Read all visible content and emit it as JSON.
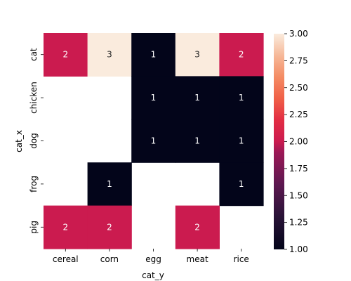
{
  "chart_data": {
    "type": "heatmap",
    "title": "",
    "xlabel": "cat_y",
    "ylabel": "cat_x",
    "x_categories": [
      "cereal",
      "corn",
      "egg",
      "meat",
      "rice"
    ],
    "y_categories": [
      "cat",
      "chicken",
      "dog",
      "frog",
      "pig"
    ],
    "values": [
      [
        2,
        3,
        1,
        3,
        2
      ],
      [
        null,
        null,
        1,
        1,
        1
      ],
      [
        null,
        null,
        1,
        1,
        1
      ],
      [
        null,
        1,
        null,
        null,
        1
      ],
      [
        2,
        2,
        null,
        2,
        null
      ]
    ],
    "colorbar": {
      "range": [
        1.0,
        3.0
      ],
      "ticks": [
        "1.00",
        "1.25",
        "1.50",
        "1.75",
        "2.00",
        "2.25",
        "2.50",
        "2.75",
        "3.00"
      ]
    },
    "colormap": "rocket",
    "annotations": true
  }
}
